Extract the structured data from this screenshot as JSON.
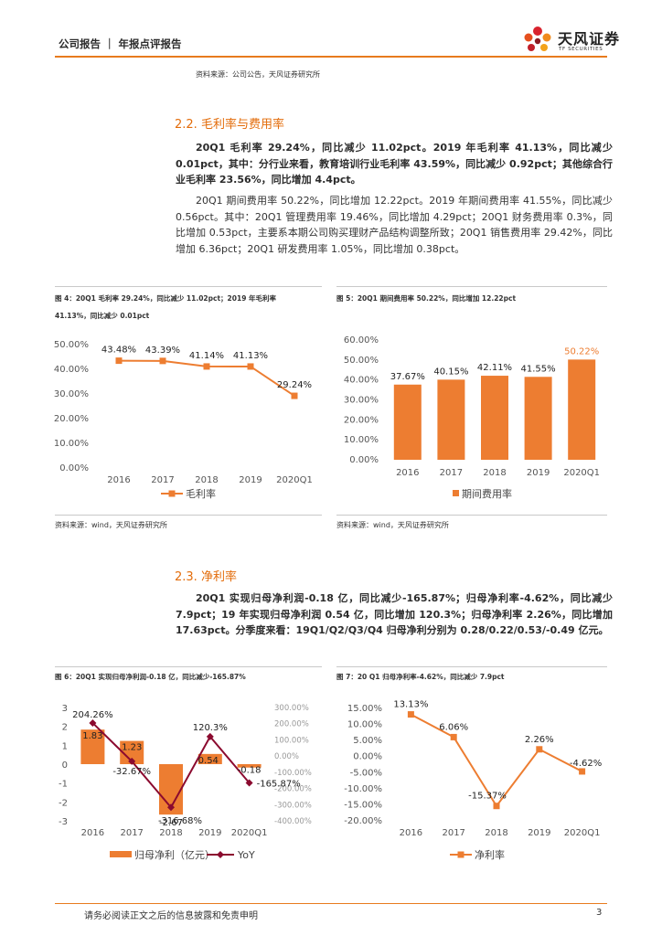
{
  "header": {
    "left": "公司报告 ｜ 年报点评报告",
    "logo_cn": "天风证券",
    "logo_en": "TF SECURITIES"
  },
  "top_source": "资料来源：公司公告，天风证券研究所",
  "section_22": {
    "title": "2.2. 毛利率与费用率",
    "para1": "20Q1 毛利率 29.24%，同比减少 11.02pct。2019 年毛利率 41.13%，同比减少 0.01pct，其中：分行业来看，教育培训行业毛利率 43.59%，同比减少 0.92pct；其他综合行业毛利率 23.56%，同比增加 4.4pct。",
    "para2": "20Q1 期间费用率 50.22%，同比增加 12.22pct。2019 年期间费用率 41.55%，同比减少 0.56pct。其中：20Q1 管理费用率 19.46%，同比增加 4.29pct；20Q1 财务费用率 0.3%，同比增加 0.53pct，主要系本期公司购买理财产品结构调整所致；20Q1 销售费用率 29.42%，同比增加 6.36pct；20Q1 研发费用率 1.05%，同比增加 0.38pct。"
  },
  "section_23": {
    "title": "2.3. 净利率",
    "para1": "20Q1 实现归母净利润-0.18 亿，同比减少-165.87%；归母净利率-4.62%，同比减少 7.9pct；19 年实现归母净利润 0.54 亿，同比增加 120.3%；归母净利率 2.26%，同比增加 17.63pct。分季度来看：19Q1/Q2/Q3/Q4 归母净利分别为 0.28/0.22/0.53/-0.49 亿元。"
  },
  "figures": {
    "fig4": {
      "title_line1": "图 4：20Q1 毛利率 29.24%，同比减少 11.02pct；2019 年毛利率",
      "title_line2": "41.13%，同比减少 0.01pct",
      "source": "资料来源：wind，天风证券研究所"
    },
    "fig5": {
      "title_line1": "图 5：20Q1 期间费用率 50.22%，同比增加 12.22pct",
      "source": "资料来源：wind，天风证券研究所"
    },
    "fig6": {
      "title_line1": "图 6：20Q1 实现归母净利润-0.18 亿，同比减少-165.87%"
    },
    "fig7": {
      "title_line1": "图 7：20 Q1 归母净利率-4.62%，同比减少 7.9pct"
    }
  },
  "footer": {
    "text": "请务必阅读正文之后的信息披露和免责申明",
    "page": "3"
  },
  "colors": {
    "orange": "#ED7D31",
    "dark_red": "#8B0A2F",
    "accent": "#E87B1E"
  },
  "chart_data": [
    {
      "id": "fig4",
      "type": "line",
      "categories": [
        "2016",
        "2017",
        "2018",
        "2019",
        "2020Q1"
      ],
      "series": [
        {
          "name": "毛利率",
          "values": [
            43.48,
            43.39,
            41.14,
            41.13,
            29.24
          ]
        }
      ],
      "data_labels": [
        "43.48%",
        "43.39%",
        "41.14%",
        "41.13%",
        "29.24%"
      ],
      "y_ticks": [
        "50.00%",
        "40.00%",
        "30.00%",
        "20.00%",
        "10.00%",
        "0.00%"
      ],
      "ylim": [
        0,
        50
      ],
      "grid": false,
      "legend": "bottom"
    },
    {
      "id": "fig5",
      "type": "bar",
      "categories": [
        "2016",
        "2017",
        "2018",
        "2019",
        "2020Q1"
      ],
      "series": [
        {
          "name": "期间费用率",
          "values": [
            37.67,
            40.15,
            42.11,
            41.55,
            50.22
          ]
        }
      ],
      "data_labels": [
        "37.67%",
        "40.15%",
        "42.11%",
        "41.55%",
        "50.22%"
      ],
      "y_ticks": [
        "60.00%",
        "50.00%",
        "40.00%",
        "30.00%",
        "20.00%",
        "10.00%",
        "0.00%"
      ],
      "ylim": [
        0,
        60
      ],
      "grid": false,
      "legend": "bottom"
    },
    {
      "id": "fig6",
      "type": "bar",
      "categories": [
        "2016",
        "2017",
        "2018",
        "2019",
        "2020Q1"
      ],
      "series": [
        {
          "name": "归母净利（亿元）",
          "type": "bar",
          "axis": "left",
          "values": [
            1.83,
            1.23,
            -2.67,
            0.54,
            -0.18
          ]
        },
        {
          "name": "YoY",
          "type": "line",
          "axis": "right",
          "values": [
            204.26,
            -32.67,
            -316.68,
            120.3,
            -165.87
          ]
        }
      ],
      "bar_labels": [
        "1.83",
        "1.23",
        "-2.67",
        "0.54",
        "-0.18"
      ],
      "line_labels": [
        "204.26%",
        "-32.67%",
        "-316.68%",
        "120.3%",
        "-165.87%"
      ],
      "y_left_ticks": [
        "3",
        "2",
        "1",
        "0",
        "-1",
        "-2",
        "-3"
      ],
      "y_right_ticks": [
        "300.00%",
        "200.00%",
        "100.00%",
        "0.00%",
        "-100.00%",
        "-200.00%",
        "-300.00%",
        "-400.00%"
      ],
      "ylim_left": [
        -3,
        3
      ],
      "ylim_right": [
        -400,
        300
      ],
      "grid": false,
      "legend": "bottom"
    },
    {
      "id": "fig7",
      "type": "line",
      "categories": [
        "2016",
        "2017",
        "2018",
        "2019",
        "2020Q1"
      ],
      "series": [
        {
          "name": "净利率",
          "values": [
            13.13,
            6.06,
            -15.37,
            2.26,
            -4.62
          ]
        }
      ],
      "data_labels": [
        "13.13%",
        "6.06%",
        "-15.37%",
        "2.26%",
        "-4.62%"
      ],
      "y_ticks": [
        "15.00%",
        "10.00%",
        "5.00%",
        "0.00%",
        "-5.00%",
        "-10.00%",
        "-15.00%",
        "-20.00%"
      ],
      "ylim": [
        -20,
        15
      ],
      "grid": false,
      "legend": "bottom"
    }
  ]
}
